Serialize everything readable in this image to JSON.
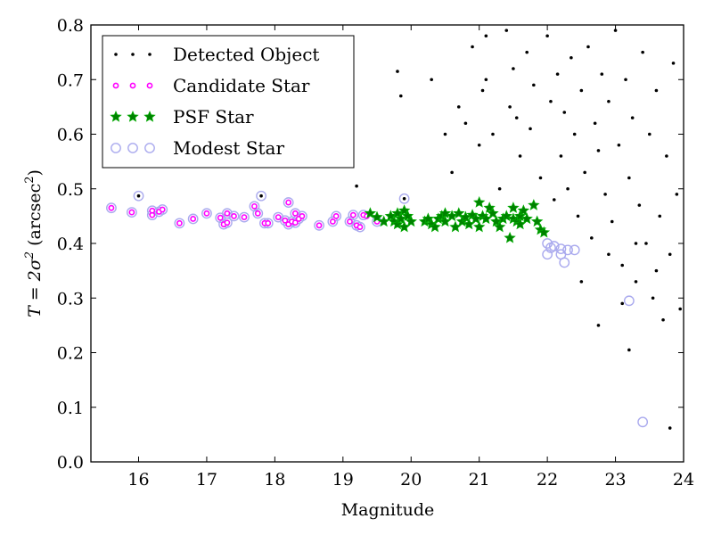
{
  "chart_data": {
    "type": "scatter",
    "title": "",
    "xlabel": "Magnitude",
    "ylabel": {
      "main": "T = 2σ",
      "sup": "2",
      "unit": " (arcsec",
      "unit_sup": "2",
      "close": ")"
    },
    "xlim": [
      15.3,
      24
    ],
    "ylim": [
      0,
      0.8
    ],
    "xticks": [
      16,
      17,
      18,
      19,
      20,
      21,
      22,
      23,
      24
    ],
    "yticks": [
      "0.0",
      "0.1",
      "0.2",
      "0.3",
      "0.4",
      "0.5",
      "0.6",
      "0.7",
      "0.8"
    ],
    "grid": false,
    "legend_position": "top-left",
    "colors": {
      "detected": "#000000",
      "candidate": "#ff00ff",
      "psf": "#008000",
      "psf_edge": "#00aa00",
      "modest": "#aaaaee"
    },
    "legend": [
      {
        "name": "Detected Object",
        "marker": "dot"
      },
      {
        "name": "Candidate Star",
        "marker": "small-circle"
      },
      {
        "name": "PSF Star",
        "marker": "star"
      },
      {
        "name": "Modest Star",
        "marker": "open-circle"
      }
    ],
    "series": [
      {
        "name": "Modest Star",
        "marker": "open-circle",
        "points": [
          [
            15.6,
            0.465
          ],
          [
            15.9,
            0.457
          ],
          [
            16.0,
            0.487
          ],
          [
            16.2,
            0.452
          ],
          [
            16.2,
            0.46
          ],
          [
            16.3,
            0.458
          ],
          [
            16.35,
            0.462
          ],
          [
            16.6,
            0.437
          ],
          [
            16.8,
            0.445
          ],
          [
            17.0,
            0.455
          ],
          [
            17.2,
            0.447
          ],
          [
            17.25,
            0.435
          ],
          [
            17.3,
            0.455
          ],
          [
            17.3,
            0.438
          ],
          [
            17.4,
            0.45
          ],
          [
            17.55,
            0.448
          ],
          [
            17.7,
            0.468
          ],
          [
            17.75,
            0.455
          ],
          [
            17.85,
            0.437
          ],
          [
            17.9,
            0.437
          ],
          [
            17.8,
            0.487
          ],
          [
            18.05,
            0.448
          ],
          [
            18.15,
            0.442
          ],
          [
            18.2,
            0.435
          ],
          [
            18.2,
            0.475
          ],
          [
            18.25,
            0.44
          ],
          [
            18.3,
            0.455
          ],
          [
            18.35,
            0.445
          ],
          [
            18.4,
            0.45
          ],
          [
            18.3,
            0.438
          ],
          [
            18.65,
            0.433
          ],
          [
            18.85,
            0.44
          ],
          [
            18.9,
            0.45
          ],
          [
            19.1,
            0.44
          ],
          [
            19.15,
            0.452
          ],
          [
            19.2,
            0.433
          ],
          [
            19.25,
            0.43
          ],
          [
            19.3,
            0.452
          ],
          [
            19.5,
            0.44
          ],
          [
            19.9,
            0.482
          ],
          [
            22.0,
            0.38
          ],
          [
            22.0,
            0.4
          ],
          [
            22.05,
            0.392
          ],
          [
            22.1,
            0.395
          ],
          [
            22.2,
            0.38
          ],
          [
            22.25,
            0.365
          ],
          [
            22.3,
            0.388
          ],
          [
            22.4,
            0.388
          ],
          [
            22.2,
            0.39
          ],
          [
            23.2,
            0.295
          ],
          [
            23.4,
            0.073
          ]
        ]
      },
      {
        "name": "Candidate Star",
        "marker": "small-circle",
        "points": [
          [
            15.6,
            0.465
          ],
          [
            15.9,
            0.457
          ],
          [
            16.2,
            0.452
          ],
          [
            16.2,
            0.46
          ],
          [
            16.3,
            0.458
          ],
          [
            16.35,
            0.462
          ],
          [
            16.6,
            0.437
          ],
          [
            16.8,
            0.445
          ],
          [
            17.0,
            0.455
          ],
          [
            17.2,
            0.447
          ],
          [
            17.25,
            0.435
          ],
          [
            17.3,
            0.455
          ],
          [
            17.3,
            0.438
          ],
          [
            17.4,
            0.45
          ],
          [
            17.55,
            0.448
          ],
          [
            17.7,
            0.468
          ],
          [
            17.75,
            0.455
          ],
          [
            17.85,
            0.437
          ],
          [
            17.9,
            0.437
          ],
          [
            18.05,
            0.448
          ],
          [
            18.15,
            0.442
          ],
          [
            18.2,
            0.435
          ],
          [
            18.2,
            0.475
          ],
          [
            18.25,
            0.44
          ],
          [
            18.3,
            0.455
          ],
          [
            18.35,
            0.445
          ],
          [
            18.4,
            0.45
          ],
          [
            18.3,
            0.438
          ],
          [
            18.65,
            0.433
          ],
          [
            18.85,
            0.44
          ],
          [
            18.9,
            0.45
          ],
          [
            19.1,
            0.44
          ],
          [
            19.15,
            0.452
          ],
          [
            19.2,
            0.433
          ],
          [
            19.25,
            0.43
          ],
          [
            19.3,
            0.452
          ],
          [
            19.35,
            0.45
          ],
          [
            19.5,
            0.44
          ]
        ]
      },
      {
        "name": "PSF Star",
        "marker": "star",
        "points": [
          [
            19.4,
            0.455
          ],
          [
            19.5,
            0.448
          ],
          [
            19.6,
            0.44
          ],
          [
            19.7,
            0.45
          ],
          [
            19.75,
            0.44
          ],
          [
            19.8,
            0.455
          ],
          [
            19.8,
            0.435
          ],
          [
            19.85,
            0.445
          ],
          [
            19.9,
            0.43
          ],
          [
            19.9,
            0.46
          ],
          [
            19.95,
            0.45
          ],
          [
            20.0,
            0.44
          ],
          [
            20.2,
            0.44
          ],
          [
            20.25,
            0.445
          ],
          [
            20.3,
            0.435
          ],
          [
            20.35,
            0.43
          ],
          [
            20.4,
            0.445
          ],
          [
            20.45,
            0.45
          ],
          [
            20.5,
            0.44
          ],
          [
            20.5,
            0.455
          ],
          [
            20.6,
            0.45
          ],
          [
            20.65,
            0.43
          ],
          [
            20.7,
            0.455
          ],
          [
            20.75,
            0.44
          ],
          [
            20.8,
            0.448
          ],
          [
            20.85,
            0.435
          ],
          [
            20.9,
            0.452
          ],
          [
            20.95,
            0.445
          ],
          [
            21.0,
            0.475
          ],
          [
            21.0,
            0.43
          ],
          [
            21.05,
            0.45
          ],
          [
            21.1,
            0.445
          ],
          [
            21.15,
            0.465
          ],
          [
            21.2,
            0.455
          ],
          [
            21.25,
            0.44
          ],
          [
            21.3,
            0.43
          ],
          [
            21.35,
            0.445
          ],
          [
            21.4,
            0.45
          ],
          [
            21.45,
            0.41
          ],
          [
            21.5,
            0.445
          ],
          [
            21.5,
            0.465
          ],
          [
            21.55,
            0.44
          ],
          [
            21.6,
            0.45
          ],
          [
            21.65,
            0.46
          ],
          [
            21.7,
            0.445
          ],
          [
            21.8,
            0.47
          ],
          [
            21.85,
            0.44
          ],
          [
            21.9,
            0.425
          ],
          [
            21.95,
            0.42
          ],
          [
            21.6,
            0.435
          ]
        ]
      },
      {
        "name": "Detected Object",
        "marker": "dot",
        "points": [
          [
            16.0,
            0.487
          ],
          [
            17.8,
            0.487
          ],
          [
            19.2,
            0.505
          ],
          [
            19.9,
            0.482
          ],
          [
            19.8,
            0.715
          ],
          [
            19.85,
            0.67
          ],
          [
            20.3,
            0.7
          ],
          [
            20.5,
            0.6
          ],
          [
            20.6,
            0.53
          ],
          [
            20.7,
            0.65
          ],
          [
            20.8,
            0.62
          ],
          [
            20.9,
            0.76
          ],
          [
            21.0,
            0.58
          ],
          [
            21.05,
            0.68
          ],
          [
            21.1,
            0.7
          ],
          [
            21.1,
            0.78
          ],
          [
            21.2,
            0.6
          ],
          [
            21.3,
            0.5
          ],
          [
            21.4,
            0.79
          ],
          [
            21.45,
            0.65
          ],
          [
            21.5,
            0.72
          ],
          [
            21.55,
            0.63
          ],
          [
            21.6,
            0.56
          ],
          [
            21.7,
            0.75
          ],
          [
            21.75,
            0.61
          ],
          [
            21.8,
            0.69
          ],
          [
            21.9,
            0.52
          ],
          [
            22.0,
            0.78
          ],
          [
            22.05,
            0.66
          ],
          [
            22.1,
            0.48
          ],
          [
            22.15,
            0.71
          ],
          [
            22.2,
            0.56
          ],
          [
            22.25,
            0.64
          ],
          [
            22.3,
            0.5
          ],
          [
            22.35,
            0.74
          ],
          [
            22.4,
            0.6
          ],
          [
            22.45,
            0.45
          ],
          [
            22.5,
            0.68
          ],
          [
            22.55,
            0.53
          ],
          [
            22.6,
            0.76
          ],
          [
            22.65,
            0.41
          ],
          [
            22.7,
            0.62
          ],
          [
            22.75,
            0.57
          ],
          [
            22.75,
            0.25
          ],
          [
            22.8,
            0.71
          ],
          [
            22.85,
            0.49
          ],
          [
            22.9,
            0.66
          ],
          [
            22.95,
            0.44
          ],
          [
            23.0,
            0.79
          ],
          [
            23.05,
            0.58
          ],
          [
            23.1,
            0.36
          ],
          [
            23.15,
            0.7
          ],
          [
            23.2,
            0.52
          ],
          [
            23.2,
            0.205
          ],
          [
            23.25,
            0.63
          ],
          [
            23.3,
            0.33
          ],
          [
            23.35,
            0.47
          ],
          [
            23.4,
            0.75
          ],
          [
            23.45,
            0.4
          ],
          [
            23.5,
            0.6
          ],
          [
            23.55,
            0.3
          ],
          [
            23.6,
            0.68
          ],
          [
            23.65,
            0.45
          ],
          [
            23.7,
            0.26
          ],
          [
            23.75,
            0.56
          ],
          [
            23.8,
            0.062
          ],
          [
            23.8,
            0.38
          ],
          [
            23.85,
            0.73
          ],
          [
            23.9,
            0.49
          ],
          [
            23.95,
            0.28
          ],
          [
            22.5,
            0.33
          ],
          [
            22.9,
            0.38
          ],
          [
            23.3,
            0.4
          ],
          [
            23.6,
            0.35
          ],
          [
            23.1,
            0.29
          ]
        ]
      }
    ]
  }
}
